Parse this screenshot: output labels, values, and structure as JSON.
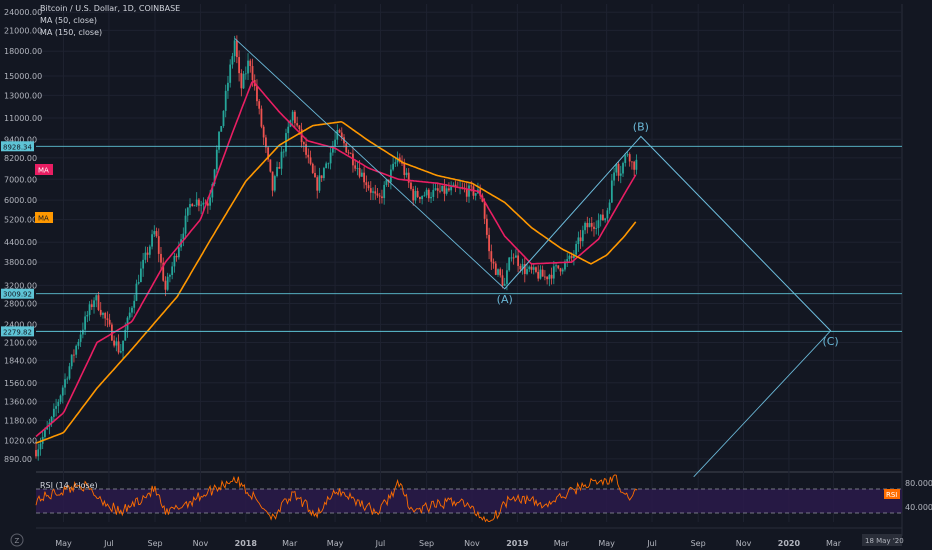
{
  "colors": {
    "background": "#131722",
    "grid": "#1e2230",
    "up": "#26a69a",
    "down": "#ef5350",
    "ma50": "#e91e63",
    "ma150": "#ff9800",
    "pattern": "#6ab7d6",
    "level": "#5ec4d6",
    "rsi": "#ff6d00",
    "rsi_band": "#2a1a4a",
    "axis_text": "#b2b5be",
    "rsi_tag": "#ff6d00"
  },
  "chart_data": [
    {
      "type": "candlestick",
      "title": "Bitcoin / U.S. Dollar, 1D, COINBASE",
      "scale": "log",
      "ylim": [
        820,
        25500
      ],
      "x_range": [
        "2017-03-25",
        "2020-06-01"
      ],
      "y_ticks": [
        890,
        1020,
        1180,
        1360,
        1560,
        1840,
        2100,
        2400,
        2800,
        3200,
        3800,
        4400,
        5200,
        6000,
        7000,
        8200,
        9400,
        11000,
        13000,
        15000,
        18000,
        21000,
        24000
      ],
      "y_tick_labels": [
        "890.00",
        "1020.00",
        "1180.00",
        "1360.00",
        "1560.00",
        "1840.00",
        "2100.00",
        "2400.00",
        "2800.00",
        "3200.00",
        "3800.00",
        "4400.00",
        "5200.00",
        "6000.00",
        "7000.00",
        "8200.00",
        "9400.00",
        "11000.00",
        "13000.00",
        "15000.00",
        "18000.00",
        "21000.00",
        "24000.00"
      ],
      "x_tick_labels": [
        "May",
        "Jul",
        "Sep",
        "Nov",
        "2018",
        "Mar",
        "May",
        "Jul",
        "Sep",
        "Nov",
        "2019",
        "Mar",
        "May",
        "Jul",
        "Sep",
        "Nov",
        "2020",
        "Mar"
      ],
      "x_tick_dates": [
        "2017-05-01",
        "2017-07-01",
        "2017-09-01",
        "2017-11-01",
        "2018-01-01",
        "2018-03-01",
        "2018-05-01",
        "2018-07-01",
        "2018-09-01",
        "2018-11-01",
        "2019-01-01",
        "2019-03-01",
        "2019-05-01",
        "2019-07-01",
        "2019-09-01",
        "2019-11-01",
        "2020-01-01",
        "2020-03-01"
      ],
      "x_bold_ticks": [
        "2018",
        "2019",
        "2020"
      ],
      "price_anchors": [
        {
          "date": "2017-03-25",
          "close": 950
        },
        {
          "date": "2017-04-15",
          "close": 1180
        },
        {
          "date": "2017-05-25",
          "close": 2300
        },
        {
          "date": "2017-06-12",
          "close": 2950
        },
        {
          "date": "2017-07-16",
          "close": 1950
        },
        {
          "date": "2017-08-10",
          "close": 3400
        },
        {
          "date": "2017-09-01",
          "close": 4800
        },
        {
          "date": "2017-09-15",
          "close": 3100
        },
        {
          "date": "2017-10-20",
          "close": 6000
        },
        {
          "date": "2017-11-12",
          "close": 5900
        },
        {
          "date": "2017-12-17",
          "close": 19500
        },
        {
          "date": "2017-12-25",
          "close": 13500
        },
        {
          "date": "2018-01-06",
          "close": 17100
        },
        {
          "date": "2018-02-06",
          "close": 6500
        },
        {
          "date": "2018-03-05",
          "close": 11400
        },
        {
          "date": "2018-04-06",
          "close": 6600
        },
        {
          "date": "2018-05-05",
          "close": 9800
        },
        {
          "date": "2018-06-28",
          "close": 5900
        },
        {
          "date": "2018-07-25",
          "close": 8300
        },
        {
          "date": "2018-08-14",
          "close": 6200
        },
        {
          "date": "2018-10-15",
          "close": 6500
        },
        {
          "date": "2018-11-14",
          "close": 6300
        },
        {
          "date": "2018-11-25",
          "close": 3900
        },
        {
          "date": "2018-12-15",
          "close": 3200
        },
        {
          "date": "2018-12-24",
          "close": 4100
        },
        {
          "date": "2019-01-10",
          "close": 3600
        },
        {
          "date": "2019-02-07",
          "close": 3400
        },
        {
          "date": "2019-03-15",
          "close": 3900
        },
        {
          "date": "2019-04-02",
          "close": 4900
        },
        {
          "date": "2019-04-30",
          "close": 5300
        },
        {
          "date": "2019-05-14",
          "close": 8100
        },
        {
          "date": "2019-05-18",
          "close": 7300
        },
        {
          "date": "2019-05-30",
          "close": 8700
        },
        {
          "date": "2019-06-05",
          "close": 7700
        },
        {
          "date": "2019-06-11",
          "close": 8000
        }
      ],
      "series": [
        {
          "name": "MA (50, close)",
          "legend_label": "MA (50, close)",
          "points": [
            {
              "date": "2017-03-25",
              "value": 1050
            },
            {
              "date": "2017-05-01",
              "value": 1250
            },
            {
              "date": "2017-06-15",
              "value": 2100
            },
            {
              "date": "2017-08-01",
              "value": 2450
            },
            {
              "date": "2017-09-15",
              "value": 3800
            },
            {
              "date": "2017-11-01",
              "value": 5200
            },
            {
              "date": "2017-12-15",
              "value": 10000
            },
            {
              "date": "2018-01-10",
              "value": 14500
            },
            {
              "date": "2018-02-15",
              "value": 11500
            },
            {
              "date": "2018-03-25",
              "value": 9300
            },
            {
              "date": "2018-05-01",
              "value": 8800
            },
            {
              "date": "2018-06-15",
              "value": 7600
            },
            {
              "date": "2018-07-25",
              "value": 7000
            },
            {
              "date": "2018-09-15",
              "value": 6800
            },
            {
              "date": "2018-11-10",
              "value": 6400
            },
            {
              "date": "2018-12-15",
              "value": 4600
            },
            {
              "date": "2019-01-20",
              "value": 3750
            },
            {
              "date": "2019-03-15",
              "value": 3800
            },
            {
              "date": "2019-04-20",
              "value": 4500
            },
            {
              "date": "2019-05-20",
              "value": 6000
            },
            {
              "date": "2019-06-10",
              "value": 7300
            }
          ]
        },
        {
          "name": "MA (150, close)",
          "legend_label": "MA (150, close)",
          "points": [
            {
              "date": "2017-03-25",
              "value": 1000
            },
            {
              "date": "2017-05-01",
              "value": 1080
            },
            {
              "date": "2017-06-15",
              "value": 1500
            },
            {
              "date": "2017-08-01",
              "value": 2000
            },
            {
              "date": "2017-10-01",
              "value": 2950
            },
            {
              "date": "2017-11-15",
              "value": 4500
            },
            {
              "date": "2018-01-01",
              "value": 6900
            },
            {
              "date": "2018-02-15",
              "value": 9000
            },
            {
              "date": "2018-04-01",
              "value": 10400
            },
            {
              "date": "2018-05-10",
              "value": 10700
            },
            {
              "date": "2018-06-15",
              "value": 9300
            },
            {
              "date": "2018-08-01",
              "value": 7900
            },
            {
              "date": "2018-09-15",
              "value": 7200
            },
            {
              "date": "2018-11-01",
              "value": 6800
            },
            {
              "date": "2018-12-15",
              "value": 5900
            },
            {
              "date": "2019-01-20",
              "value": 4900
            },
            {
              "date": "2019-03-01",
              "value": 4200
            },
            {
              "date": "2019-04-10",
              "value": 3750
            },
            {
              "date": "2019-05-01",
              "value": 4000
            },
            {
              "date": "2019-05-25",
              "value": 4600
            },
            {
              "date": "2019-06-10",
              "value": 5150
            }
          ]
        }
      ],
      "legend_tags": {
        "ma50_tag": "MA",
        "ma150_tag": "MA"
      },
      "wave_points": [
        {
          "label": "",
          "date": "2017-12-17",
          "value": 19800
        },
        {
          "label": "(A)",
          "date": "2018-12-15",
          "value": 3120
        },
        {
          "label": "(B)",
          "date": "2019-06-16",
          "value": 9600
        },
        {
          "label": "(C)",
          "date": "2020-02-26",
          "value": 2290
        }
      ],
      "channel_points": [
        {
          "date": "2018-12-15",
          "value": 3120
        },
        {
          "date": "2019-06-16",
          "value": 9600
        },
        {
          "date": "2020-02-26",
          "value": 2290
        },
        {
          "date": "2019-08-26",
          "value": 780
        }
      ],
      "horizontal_levels": [
        {
          "value": 8928.34,
          "label": "8928.34"
        },
        {
          "value": 3009.92,
          "label": "3009.92"
        },
        {
          "value": 2279.82,
          "label": "2279.82"
        }
      ],
      "current_date_label": "18 May '20"
    },
    {
      "type": "line",
      "title": "RSI (14, close)",
      "ylim": [
        15,
        95
      ],
      "y_ticks": [
        80,
        40
      ],
      "y_tick_labels": [
        "80.0000",
        "40.0000"
      ],
      "band_top": 70,
      "band_bottom": 30,
      "rsi_tag": "RSI",
      "series": [
        {
          "name": "RSI (14, close)",
          "points": [
            {
              "date": "2017-03-25",
              "value": 52
            },
            {
              "date": "2017-05-25",
              "value": 78
            },
            {
              "date": "2017-07-16",
              "value": 30
            },
            {
              "date": "2017-09-01",
              "value": 70
            },
            {
              "date": "2017-09-15",
              "value": 28
            },
            {
              "date": "2017-12-17",
              "value": 88
            },
            {
              "date": "2018-02-06",
              "value": 24
            },
            {
              "date": "2018-03-05",
              "value": 60
            },
            {
              "date": "2018-04-06",
              "value": 28
            },
            {
              "date": "2018-05-05",
              "value": 68
            },
            {
              "date": "2018-06-28",
              "value": 30
            },
            {
              "date": "2018-07-25",
              "value": 79
            },
            {
              "date": "2018-08-14",
              "value": 33
            },
            {
              "date": "2018-10-15",
              "value": 52
            },
            {
              "date": "2018-11-25",
              "value": 14
            },
            {
              "date": "2018-12-24",
              "value": 60
            },
            {
              "date": "2019-02-07",
              "value": 42
            },
            {
              "date": "2019-04-02",
              "value": 78
            },
            {
              "date": "2019-05-14",
              "value": 86
            },
            {
              "date": "2019-05-25",
              "value": 55
            },
            {
              "date": "2019-06-11",
              "value": 66
            }
          ]
        }
      ]
    }
  ]
}
